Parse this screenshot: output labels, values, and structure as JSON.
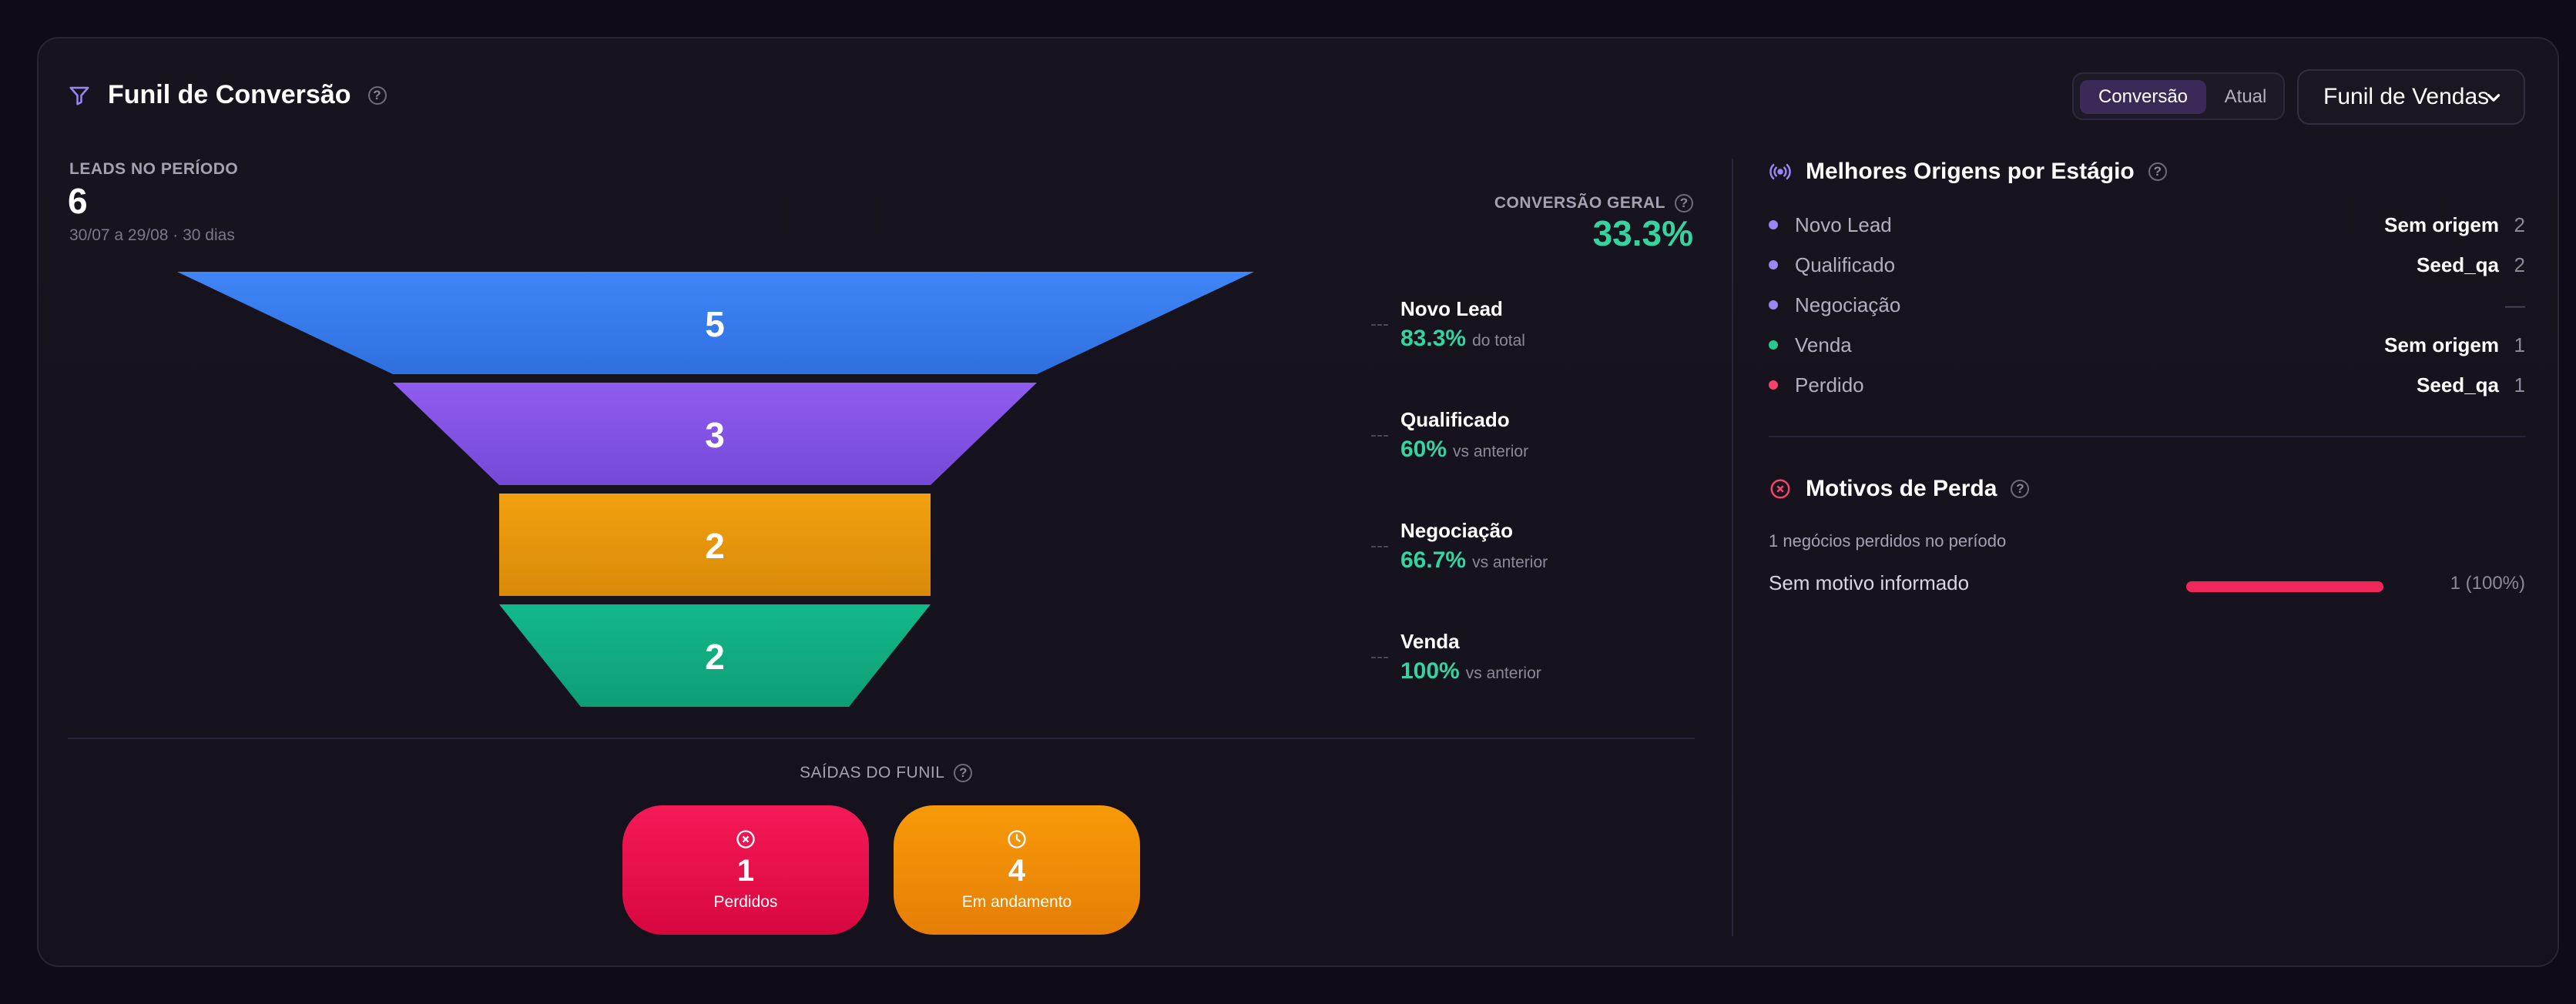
{
  "header": {
    "title": "Funil de Conversão",
    "toggle_active": "Conversão",
    "toggle_inactive": "Atual",
    "pipeline_select": "Funil de Vendas"
  },
  "summary": {
    "leads_label": "LEADS NO PERÍODO",
    "leads_value": "6",
    "period": "30/07 a 29/08 · 30 dias",
    "conversion_label": "CONVERSÃO GERAL",
    "conversion_value": "33.3%"
  },
  "funnel": {
    "stages": [
      {
        "count": "5",
        "name": "Novo Lead",
        "pct": "83.3%",
        "ref": "do total",
        "color_top": "#3f86f6",
        "color_bottom": "#2f6fe0"
      },
      {
        "count": "3",
        "name": "Qualificado",
        "pct": "60%",
        "ref": "vs anterior",
        "color_top": "#8f5cf0",
        "color_bottom": "#7549d8"
      },
      {
        "count": "2",
        "name": "Negociação",
        "pct": "66.7%",
        "ref": "vs anterior",
        "color_top": "#f1a10e",
        "color_bottom": "#d98a0a"
      },
      {
        "count": "2",
        "name": "Venda",
        "pct": "100%",
        "ref": "vs anterior",
        "color_top": "#13b98a",
        "color_bottom": "#0e9e74"
      }
    ]
  },
  "exits": {
    "label": "SAÍDAS DO FUNIL",
    "lost": {
      "value": "1",
      "label": "Perdidos",
      "color": "#f0164f"
    },
    "in_progress": {
      "value": "4",
      "label": "Em andamento",
      "color": "#f18b06"
    }
  },
  "origins": {
    "title": "Melhores Origens por Estágio",
    "rows": [
      {
        "stage": "Novo Lead",
        "source": "Sem origem",
        "count": "2",
        "dot": "#9b86f2"
      },
      {
        "stage": "Qualificado",
        "source": "Seed_qa",
        "count": "2",
        "dot": "#9b86f2"
      },
      {
        "stage": "Negociação",
        "source": "",
        "count": "—",
        "dot": "#9b86f2"
      },
      {
        "stage": "Venda",
        "source": "Sem origem",
        "count": "1",
        "dot": "#26c98f"
      },
      {
        "stage": "Perdido",
        "source": "Seed_qa",
        "count": "1",
        "dot": "#f5436c"
      }
    ]
  },
  "loss": {
    "title": "Motivos de Perda",
    "subtitle": "1 negócios perdidos no período",
    "reasons": [
      {
        "label": "Sem motivo informado",
        "value": "1 (100%)",
        "share": 1.0,
        "color": "#f0285a"
      }
    ]
  },
  "icons": {
    "title_icon": "funnel-icon",
    "origins_icon": "broadcast-icon",
    "loss_icon": "x-circle-icon",
    "lost_icon": "x-circle-icon",
    "progress_icon": "clock-icon"
  },
  "accent": "#8b6cf0"
}
